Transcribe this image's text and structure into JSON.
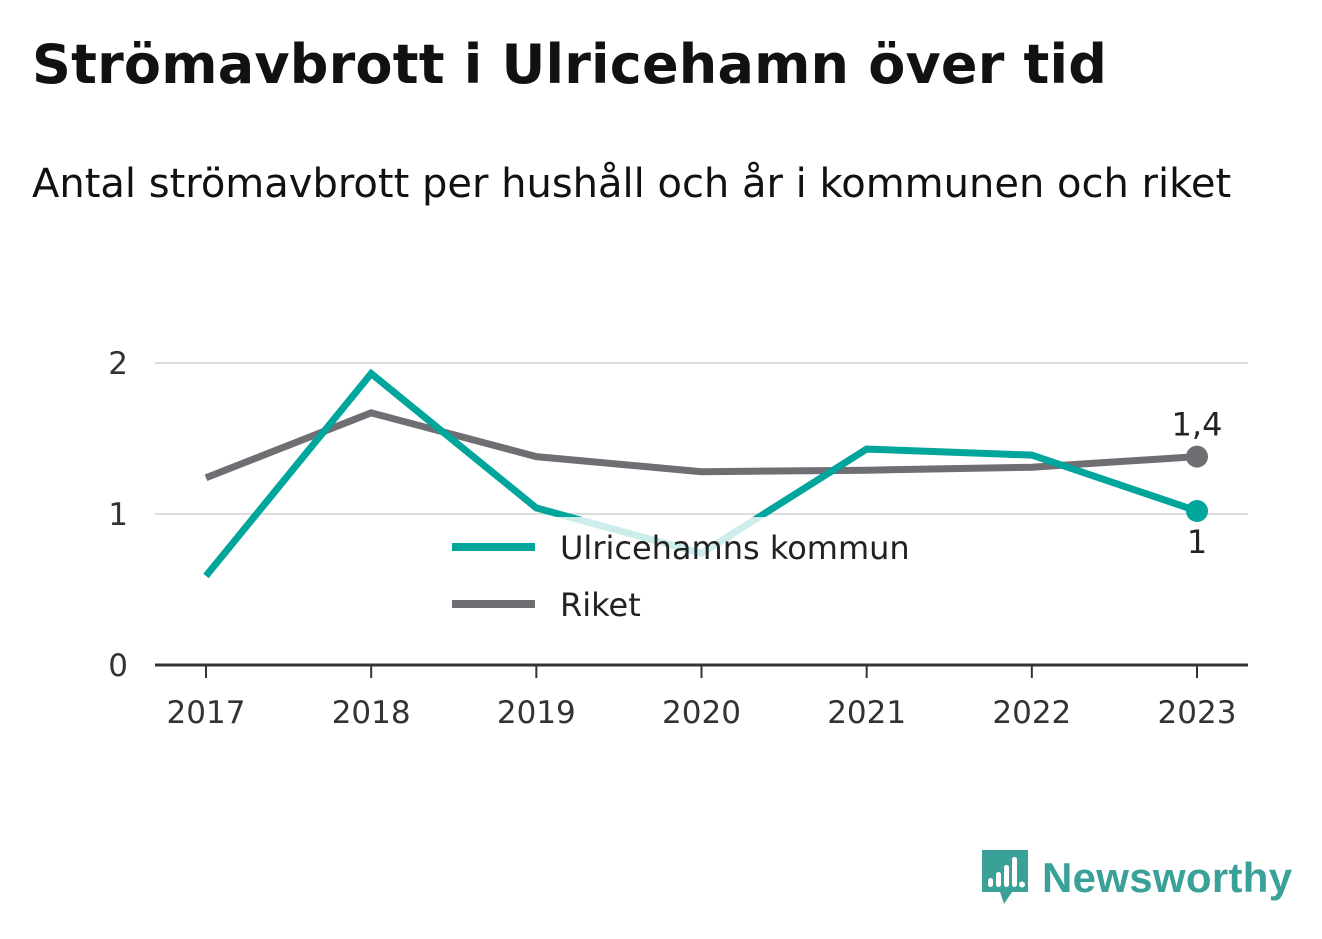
{
  "header": {
    "title": "Strömavbrott i Ulricehamn över tid",
    "subtitle": "Antal strömavbrott per hushåll och år i kommunen och riket"
  },
  "brand": {
    "name": "Newsworthy",
    "icon": "bar-chart-speech-bubble-icon",
    "color": "#3aa198"
  },
  "chart_data": {
    "type": "line",
    "title": "Strömavbrott i Ulricehamn över tid",
    "subtitle": "Antal strömavbrott per hushåll och år i kommunen och riket",
    "xlabel": "",
    "ylabel": "",
    "categories": [
      "2017",
      "2018",
      "2019",
      "2020",
      "2021",
      "2022",
      "2023"
    ],
    "ylim": [
      0,
      2
    ],
    "yticks": [
      "0",
      "1",
      "2"
    ],
    "grid": true,
    "legend_position": "center",
    "series": [
      {
        "name": "Ulricehamns kommun",
        "color": "#00a59b",
        "values": [
          0.59,
          1.93,
          1.04,
          0.74,
          1.43,
          1.39,
          1.02
        ],
        "end_label": "1"
      },
      {
        "name": "Riket",
        "color": "#6e6e73",
        "values": [
          1.24,
          1.67,
          1.38,
          1.28,
          1.29,
          1.31,
          1.38
        ],
        "end_label": "1,4"
      }
    ]
  }
}
